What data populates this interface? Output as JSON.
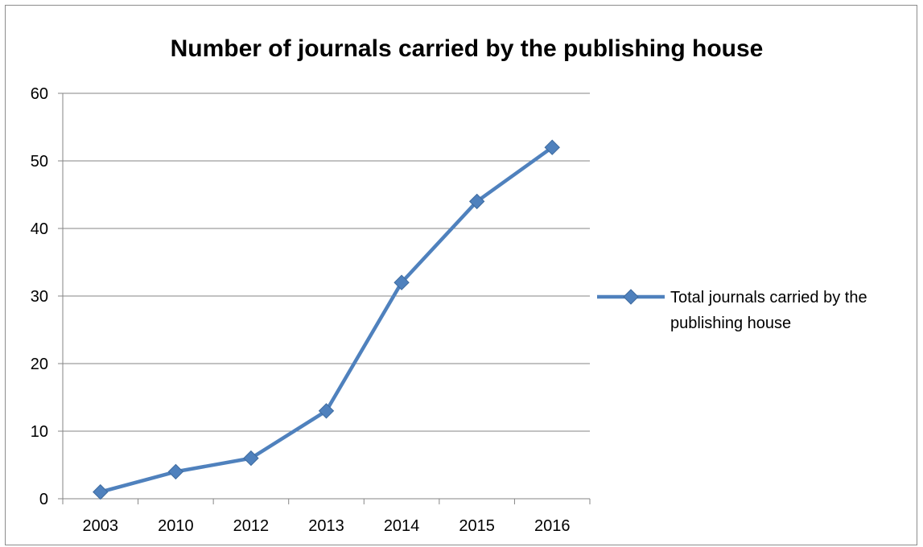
{
  "chart_data": {
    "type": "line",
    "title": "Number of journals carried by the publishing house",
    "xlabel": "",
    "ylabel": "",
    "categories": [
      "2003",
      "2010",
      "2012",
      "2013",
      "2014",
      "2015",
      "2016"
    ],
    "series": [
      {
        "name": "Total journals carried by the publishing house",
        "values": [
          1,
          4,
          6,
          13,
          32,
          44,
          52
        ],
        "color": "#4f81bd",
        "marker": "diamond"
      }
    ],
    "ylim": [
      0,
      60
    ],
    "yticks": [
      0,
      10,
      20,
      30,
      40,
      50,
      60
    ],
    "grid": "horizontal",
    "legend_position": "right"
  }
}
